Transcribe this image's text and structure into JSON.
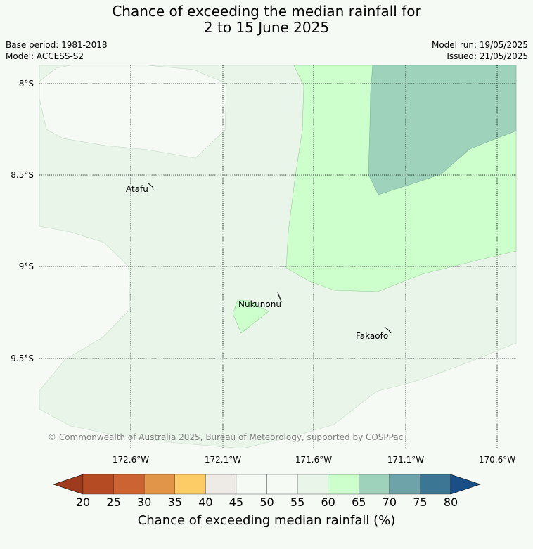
{
  "title_line1": "Chance of exceeding the median rainfall for",
  "title_line2": "2 to 15 June 2025",
  "meta": {
    "base_period": "Base period: 1981-2018",
    "model": "Model: ACCESS-S2",
    "model_run": "Model run: 19/05/2025",
    "issued": "Issued: 21/05/2025"
  },
  "latitude_labels": [
    "8°S",
    "8.5°S",
    "9°S",
    "9.5°S"
  ],
  "longitude_labels": [
    "172.6°W",
    "172.1°W",
    "171.6°W",
    "171.1°W",
    "170.6°W"
  ],
  "places": {
    "atafu": "Atafu",
    "nukunonu": "Nukunonu",
    "fakaofo": "Fakaofo"
  },
  "copyright": "© Commonwealth of Australia 2025, Bureau of Meteorology, supported by COSPPac",
  "colorbar": {
    "title": "Chance of exceeding median rainfall (%)",
    "ticks": [
      "20",
      "25",
      "30",
      "35",
      "40",
      "45",
      "50",
      "55",
      "60",
      "65",
      "70",
      "75",
      "80"
    ],
    "colors": [
      "#9e3b1f",
      "#b54b23",
      "#cb6333",
      "#e09548",
      "#fdcc66",
      "#eeeae5",
      "#f5faf5",
      "#f5faf5",
      "#e8f5e8",
      "#ccffcc",
      "#9ed2ba",
      "#6fa3aa",
      "#3c7695",
      "#1a4e87"
    ]
  },
  "map_colors": {
    "below_50": "#f5faf5",
    "p55_60": "#e8f5e8",
    "p60_65": "#ccffcc",
    "p65_70": "#9ed2ba"
  }
}
